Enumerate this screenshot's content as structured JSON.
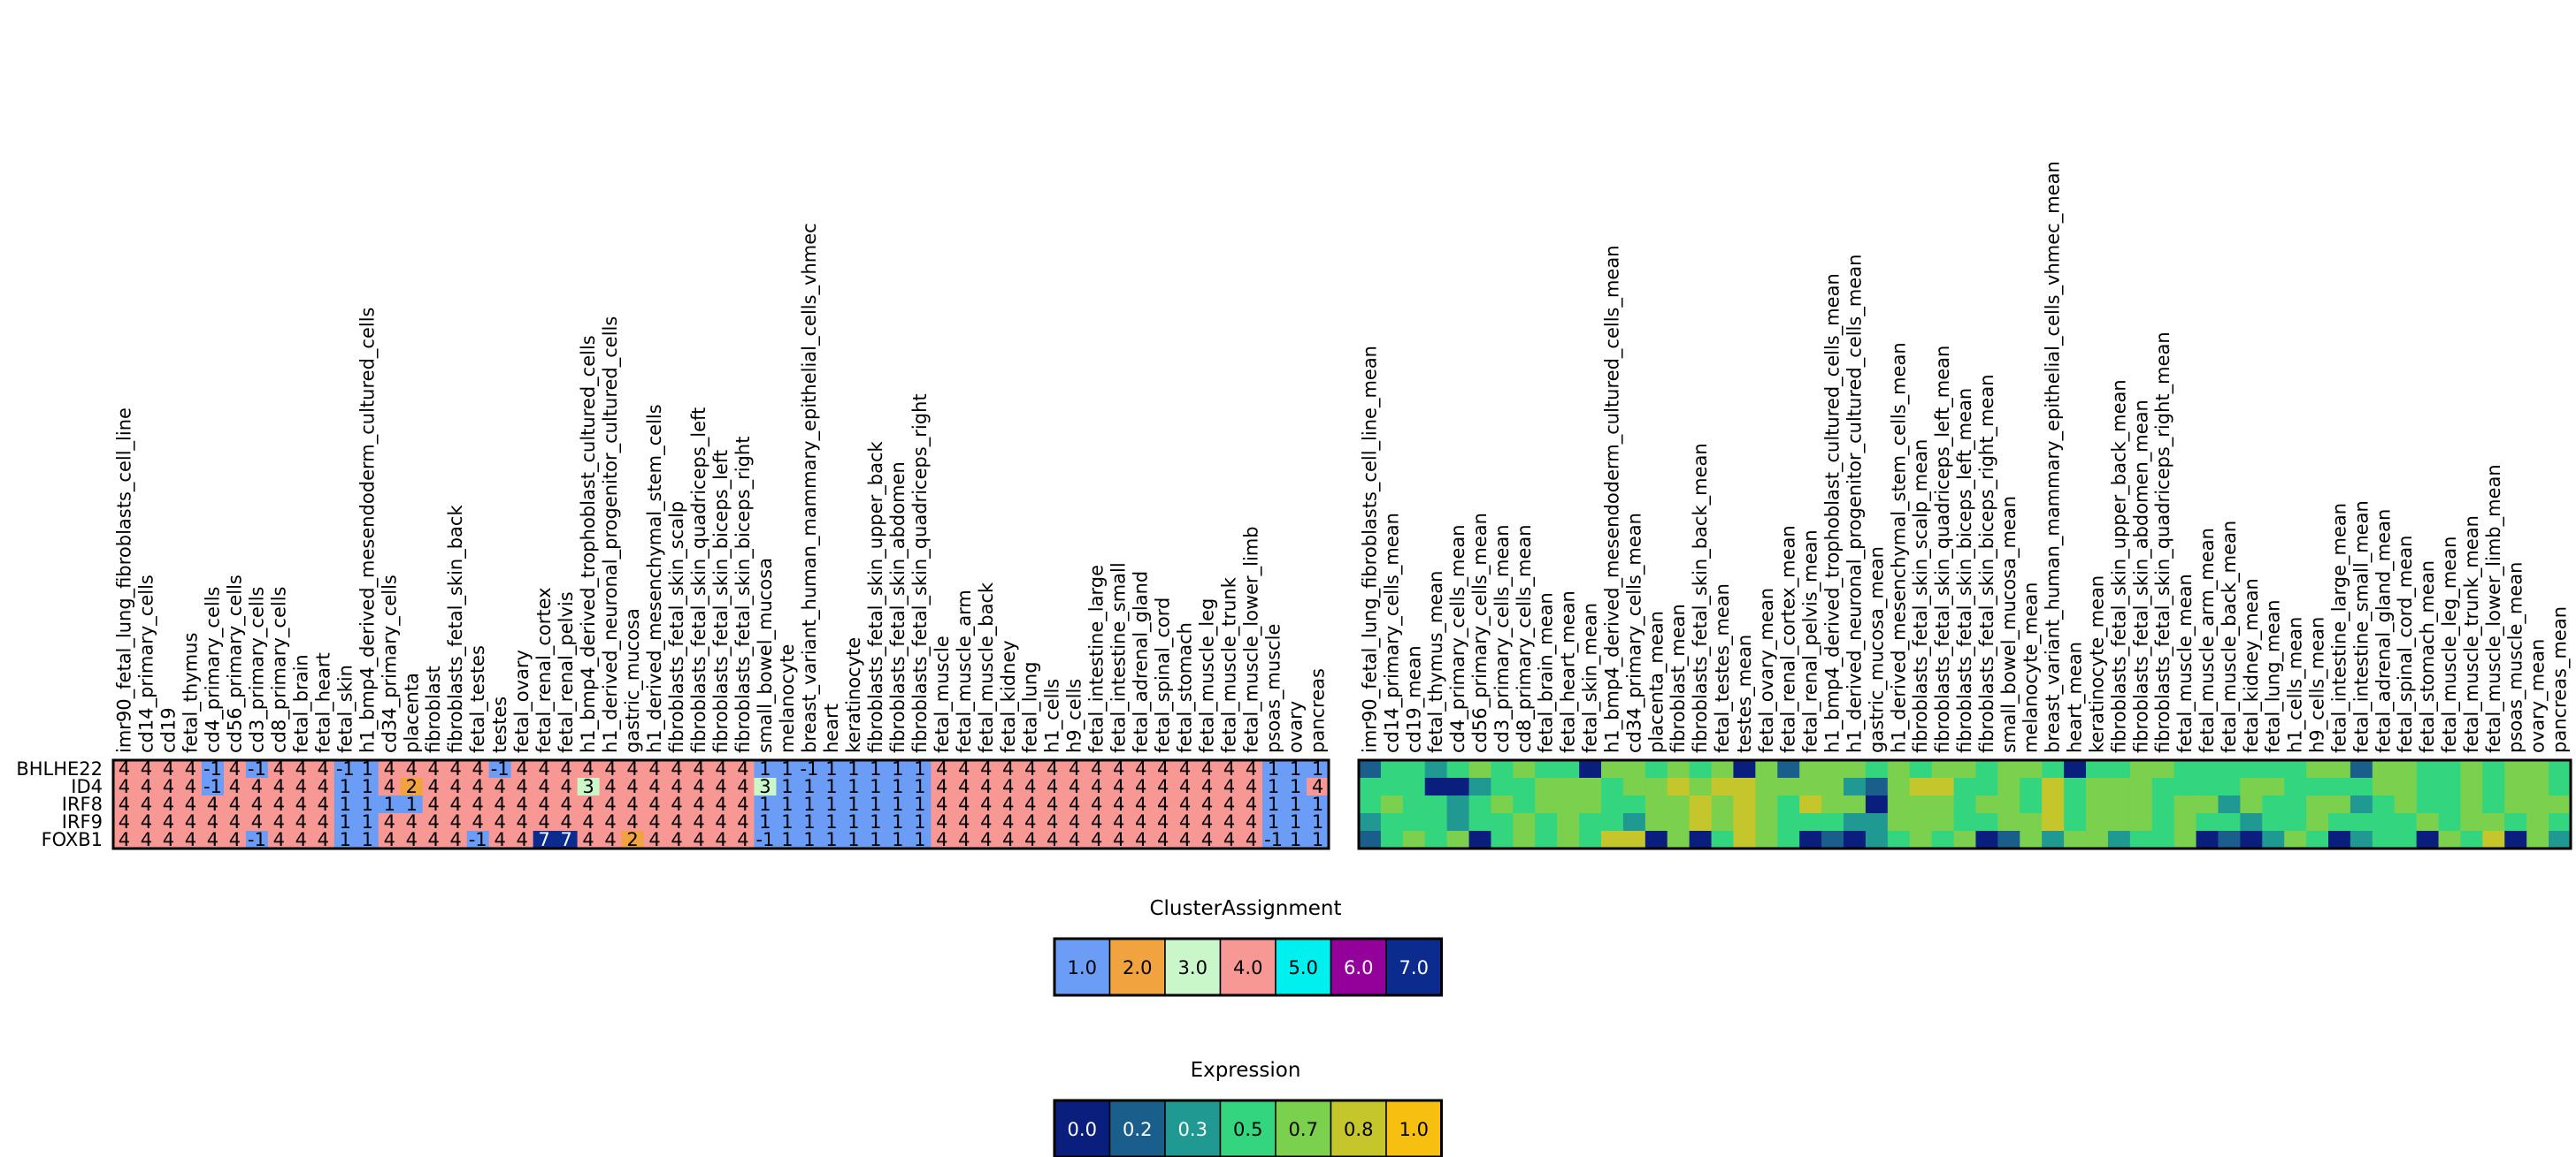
{
  "chart_data": {
    "type": "heatmap",
    "rows": [
      "BHLHE22",
      "ID4",
      "IRF8",
      "IRF9",
      "FOXB1"
    ],
    "cluster_heatmap": {
      "columns": [
        "imr90_fetal_lung_fibroblasts_cell_line",
        "cd14_primary_cells",
        "cd19",
        "fetal_thymus",
        "cd4_primary_cells",
        "cd56_primary_cells",
        "cd3_primary_cells",
        "cd8_primary_cells",
        "fetal_brain",
        "fetal_heart",
        "fetal_skin",
        "h1_bmp4_derived_mesendoderm_cultured_cells",
        "cd34_primary_cells",
        "placenta",
        "fibroblast",
        "fibroblasts_fetal_skin_back",
        "fetal_testes",
        "testes",
        "fetal_ovary",
        "fetal_renal_cortex",
        "fetal_renal_pelvis",
        "h1_bmp4_derived_trophoblast_cultured_cells",
        "h1_derived_neuronal_progenitor_cultured_cells",
        "gastric_mucosa",
        "h1_derived_mesenchymal_stem_cells",
        "fibroblasts_fetal_skin_scalp",
        "fibroblasts_fetal_skin_quadriceps_left",
        "fibroblasts_fetal_skin_biceps_left",
        "fibroblasts_fetal_skin_biceps_right",
        "small_bowel_mucosa",
        "melanocyte",
        "breast_variant_human_mammary_epithelial_cells_vhmec",
        "heart",
        "keratinocyte",
        "fibroblasts_fetal_skin_upper_back",
        "fibroblasts_fetal_skin_abdomen",
        "fibroblasts_fetal_skin_quadriceps_right",
        "fetal_muscle",
        "fetal_muscle_arm",
        "fetal_muscle_back",
        "fetal_kidney",
        "fetal_lung",
        "h1_cells",
        "h9_cells",
        "fetal_intestine_large",
        "fetal_intestine_small",
        "fetal_adrenal_gland",
        "fetal_spinal_cord",
        "fetal_stomach",
        "fetal_muscle_leg",
        "fetal_muscle_trunk",
        "fetal_muscle_lower_limb",
        "psoas_muscle",
        "ovary",
        "pancreas"
      ],
      "values": [
        [
          4,
          4,
          4,
          4,
          -1,
          4,
          -1,
          4,
          4,
          4,
          -1,
          1,
          4,
          4,
          4,
          4,
          4,
          -1,
          4,
          4,
          4,
          4,
          4,
          4,
          4,
          4,
          4,
          4,
          4,
          1,
          1,
          -1,
          1,
          1,
          1,
          1,
          1,
          4,
          4,
          4,
          4,
          4,
          4,
          4,
          4,
          4,
          4,
          4,
          4,
          4,
          4,
          4,
          1,
          1,
          1
        ],
        [
          4,
          4,
          4,
          4,
          -1,
          4,
          4,
          4,
          4,
          4,
          1,
          1,
          4,
          2,
          4,
          4,
          4,
          4,
          4,
          4,
          4,
          3,
          4,
          4,
          4,
          4,
          4,
          4,
          4,
          3,
          1,
          1,
          1,
          1,
          1,
          1,
          1,
          4,
          4,
          4,
          4,
          4,
          4,
          4,
          4,
          4,
          4,
          4,
          4,
          4,
          4,
          4,
          1,
          1,
          4
        ],
        [
          4,
          4,
          4,
          4,
          4,
          4,
          4,
          4,
          4,
          4,
          1,
          1,
          1,
          1,
          4,
          4,
          4,
          4,
          4,
          4,
          4,
          4,
          4,
          4,
          4,
          4,
          4,
          4,
          4,
          1,
          1,
          1,
          1,
          1,
          1,
          1,
          1,
          4,
          4,
          4,
          4,
          4,
          4,
          4,
          4,
          4,
          4,
          4,
          4,
          4,
          4,
          4,
          1,
          1,
          1
        ],
        [
          4,
          4,
          4,
          4,
          4,
          4,
          4,
          4,
          4,
          4,
          1,
          1,
          4,
          4,
          4,
          4,
          4,
          4,
          4,
          4,
          4,
          4,
          4,
          4,
          4,
          4,
          4,
          4,
          4,
          1,
          1,
          1,
          1,
          1,
          1,
          1,
          1,
          4,
          4,
          4,
          4,
          4,
          4,
          4,
          4,
          4,
          4,
          4,
          4,
          4,
          4,
          4,
          1,
          1,
          1
        ],
        [
          4,
          4,
          4,
          4,
          4,
          4,
          -1,
          4,
          4,
          4,
          1,
          1,
          4,
          4,
          4,
          4,
          -1,
          4,
          4,
          7,
          7,
          4,
          4,
          2,
          4,
          4,
          4,
          4,
          4,
          -1,
          1,
          1,
          1,
          1,
          1,
          1,
          1,
          4,
          4,
          4,
          4,
          4,
          4,
          4,
          4,
          4,
          4,
          4,
          4,
          4,
          4,
          4,
          -1,
          1,
          1
        ]
      ],
      "cell_colors": {
        "1": "#6b9cf6",
        "-1": "#6b9cf6",
        "2": "#f0a33e",
        "3": "#c9f7c9",
        "4": "#f79895",
        "5": "#00f0ef",
        "6": "#94009a",
        "7": "#0b2c8e"
      }
    },
    "expression_heatmap": {
      "columns": [
        "imr90_fetal_lung_fibroblasts_cell_line_mean",
        "cd14_primary_cells_mean",
        "cd19_mean",
        "fetal_thymus_mean",
        "cd4_primary_cells_mean",
        "cd56_primary_cells_mean",
        "cd3_primary_cells_mean",
        "cd8_primary_cells_mean",
        "fetal_brain_mean",
        "fetal_heart_mean",
        "fetal_skin_mean",
        "h1_bmp4_derived_mesendoderm_cultured_cells_mean",
        "cd34_primary_cells_mean",
        "placenta_mean",
        "fibroblast_mean",
        "fibroblasts_fetal_skin_back_mean",
        "fetal_testes_mean",
        "testes_mean",
        "fetal_ovary_mean",
        "fetal_renal_cortex_mean",
        "fetal_renal_pelvis_mean",
        "h1_bmp4_derived_trophoblast_cultured_cells_mean",
        "h1_derived_neuronal_progenitor_cultured_cells_mean",
        "gastric_mucosa_mean",
        "h1_derived_mesenchymal_stem_cells_mean",
        "fibroblasts_fetal_skin_scalp_mean",
        "fibroblasts_fetal_skin_quadriceps_left_mean",
        "fibroblasts_fetal_skin_biceps_left_mean",
        "fibroblasts_fetal_skin_biceps_right_mean",
        "small_bowel_mucosa_mean",
        "melanocyte_mean",
        "breast_variant_human_mammary_epithelial_cells_vhmec_mean",
        "heart_mean",
        "keratinocyte_mean",
        "fibroblasts_fetal_skin_upper_back_mean",
        "fibroblasts_fetal_skin_abdomen_mean",
        "fibroblasts_fetal_skin_quadriceps_right_mean",
        "fetal_muscle_mean",
        "fetal_muscle_arm_mean",
        "fetal_muscle_back_mean",
        "fetal_kidney_mean",
        "fetal_lung_mean",
        "h1_cells_mean",
        "h9_cells_mean",
        "fetal_intestine_large_mean",
        "fetal_intestine_small_mean",
        "fetal_adrenal_gland_mean",
        "fetal_spinal_cord_mean",
        "fetal_stomach_mean",
        "fetal_muscle_leg_mean",
        "fetal_muscle_trunk_mean",
        "fetal_muscle_lower_limb_mean",
        "psoas_muscle_mean",
        "ovary_mean",
        "pancreas_mean"
      ],
      "values": [
        [
          0.2,
          0.5,
          0.5,
          0.3,
          0.5,
          0.7,
          0.5,
          0.7,
          0.5,
          0.5,
          0.0,
          0.7,
          0.7,
          0.5,
          0.7,
          0.5,
          0.7,
          0.0,
          0.7,
          0.2,
          0.7,
          0.7,
          0.7,
          0.5,
          0.7,
          0.5,
          0.7,
          0.7,
          0.5,
          0.7,
          0.7,
          0.5,
          0.0,
          0.5,
          0.5,
          0.7,
          0.7,
          0.5,
          0.5,
          0.5,
          0.5,
          0.5,
          0.5,
          0.7,
          0.7,
          0.2,
          0.7,
          0.7,
          0.5,
          0.5,
          0.7,
          0.5,
          0.7,
          0.7,
          0.5
        ],
        [
          0.5,
          0.5,
          0.5,
          0.0,
          0.0,
          0.3,
          0.5,
          0.5,
          0.7,
          0.7,
          0.7,
          0.5,
          0.7,
          0.7,
          0.8,
          0.7,
          0.8,
          0.8,
          0.7,
          0.7,
          0.7,
          0.7,
          0.3,
          0.2,
          0.7,
          0.8,
          0.8,
          0.5,
          0.5,
          0.7,
          0.5,
          0.8,
          0.5,
          0.7,
          0.7,
          0.7,
          0.5,
          0.5,
          0.5,
          0.5,
          0.7,
          0.7,
          0.5,
          0.5,
          0.5,
          0.5,
          0.7,
          0.7,
          0.5,
          0.5,
          0.7,
          0.5,
          0.7,
          0.7,
          0.5
        ],
        [
          0.5,
          0.7,
          0.5,
          0.5,
          0.3,
          0.5,
          0.7,
          0.5,
          0.7,
          0.7,
          0.7,
          0.5,
          0.5,
          0.7,
          0.7,
          0.8,
          0.7,
          0.8,
          0.7,
          0.5,
          0.8,
          0.7,
          0.7,
          0.0,
          0.7,
          0.7,
          0.7,
          0.5,
          0.7,
          0.7,
          0.5,
          0.8,
          0.5,
          0.7,
          0.7,
          0.7,
          0.5,
          0.7,
          0.7,
          0.3,
          0.7,
          0.5,
          0.5,
          0.7,
          0.7,
          0.3,
          0.5,
          0.7,
          0.5,
          0.5,
          0.7,
          0.5,
          0.7,
          0.7,
          0.7
        ],
        [
          0.3,
          0.5,
          0.5,
          0.5,
          0.3,
          0.5,
          0.5,
          0.7,
          0.5,
          0.7,
          0.5,
          0.5,
          0.3,
          0.7,
          0.7,
          0.8,
          0.7,
          0.8,
          0.7,
          0.5,
          0.5,
          0.5,
          0.3,
          0.3,
          0.7,
          0.7,
          0.7,
          0.5,
          0.5,
          0.7,
          0.7,
          0.8,
          0.5,
          0.7,
          0.7,
          0.7,
          0.5,
          0.7,
          0.5,
          0.5,
          0.3,
          0.5,
          0.5,
          0.7,
          0.5,
          0.5,
          0.5,
          0.5,
          0.7,
          0.5,
          0.7,
          0.7,
          0.5,
          0.7,
          0.5
        ],
        [
          0.2,
          0.5,
          0.7,
          0.5,
          0.7,
          0.0,
          0.5,
          0.7,
          0.5,
          0.7,
          0.5,
          0.8,
          0.8,
          0.0,
          0.7,
          0.0,
          0.5,
          0.8,
          0.7,
          0.5,
          0.0,
          0.2,
          0.0,
          0.3,
          0.5,
          0.7,
          0.5,
          0.7,
          0.0,
          0.2,
          0.7,
          0.3,
          0.7,
          0.7,
          0.3,
          0.5,
          0.5,
          0.7,
          0.0,
          0.2,
          0.0,
          0.3,
          0.7,
          0.5,
          0.0,
          0.3,
          0.5,
          0.5,
          0.0,
          0.7,
          0.5,
          0.8,
          0.0,
          0.7,
          0.3
        ]
      ]
    },
    "legends": [
      {
        "title": "ClusterAssignment",
        "items": [
          {
            "label": "1.0",
            "color": "#6b9cf6",
            "text_color": "#000000"
          },
          {
            "label": "2.0",
            "color": "#f0a33e",
            "text_color": "#000000"
          },
          {
            "label": "3.0",
            "color": "#c9f7c9",
            "text_color": "#000000"
          },
          {
            "label": "4.0",
            "color": "#f79895",
            "text_color": "#000000"
          },
          {
            "label": "5.0",
            "color": "#00f0ef",
            "text_color": "#000000"
          },
          {
            "label": "6.0",
            "color": "#94009a",
            "text_color": "#ffffff"
          },
          {
            "label": "7.0",
            "color": "#0b2c8e",
            "text_color": "#ffffff"
          }
        ]
      },
      {
        "title": "Expression",
        "items": [
          {
            "label": "0.0",
            "color": "#0a1f7d",
            "text_color": "#ffffff"
          },
          {
            "label": "0.2",
            "color": "#1a5f8c",
            "text_color": "#ffffff"
          },
          {
            "label": "0.3",
            "color": "#1f9991",
            "text_color": "#ffffff"
          },
          {
            "label": "0.5",
            "color": "#33d67e",
            "text_color": "#000000"
          },
          {
            "label": "0.7",
            "color": "#7bd14d",
            "text_color": "#000000"
          },
          {
            "label": "0.8",
            "color": "#c4c62c",
            "text_color": "#000000"
          },
          {
            "label": "1.0",
            "color": "#f7bf10",
            "text_color": "#000000"
          }
        ]
      }
    ]
  }
}
